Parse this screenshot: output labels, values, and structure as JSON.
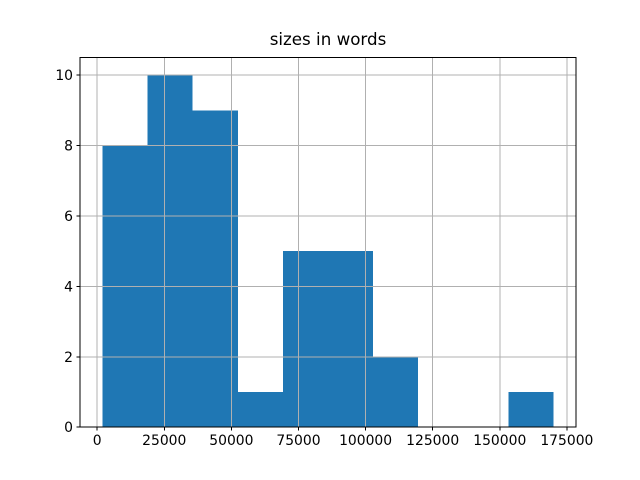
{
  "figure": {
    "title": "sizes in words"
  },
  "chart_data": {
    "type": "histogram",
    "title": "sizes in words",
    "xlabel": "",
    "ylabel": "",
    "bin_edges": [
      2000,
      18800,
      35600,
      52400,
      69200,
      86000,
      102800,
      119600,
      136400,
      153200,
      170000
    ],
    "counts": [
      8,
      10,
      9,
      1,
      5,
      5,
      2,
      0,
      0,
      1
    ],
    "x_ticks": [
      0,
      25000,
      50000,
      75000,
      100000,
      125000,
      150000,
      175000
    ],
    "y_ticks": [
      0,
      2,
      4,
      6,
      8,
      10
    ],
    "xlim": [
      -6400,
      178400
    ],
    "ylim": [
      0,
      10.5
    ],
    "grid": true,
    "grid_above_bars": true,
    "bar_color": "#1f77b4",
    "grid_color": "#b0b0b0",
    "axis_color": "#000000",
    "background_color": "#ffffff"
  }
}
